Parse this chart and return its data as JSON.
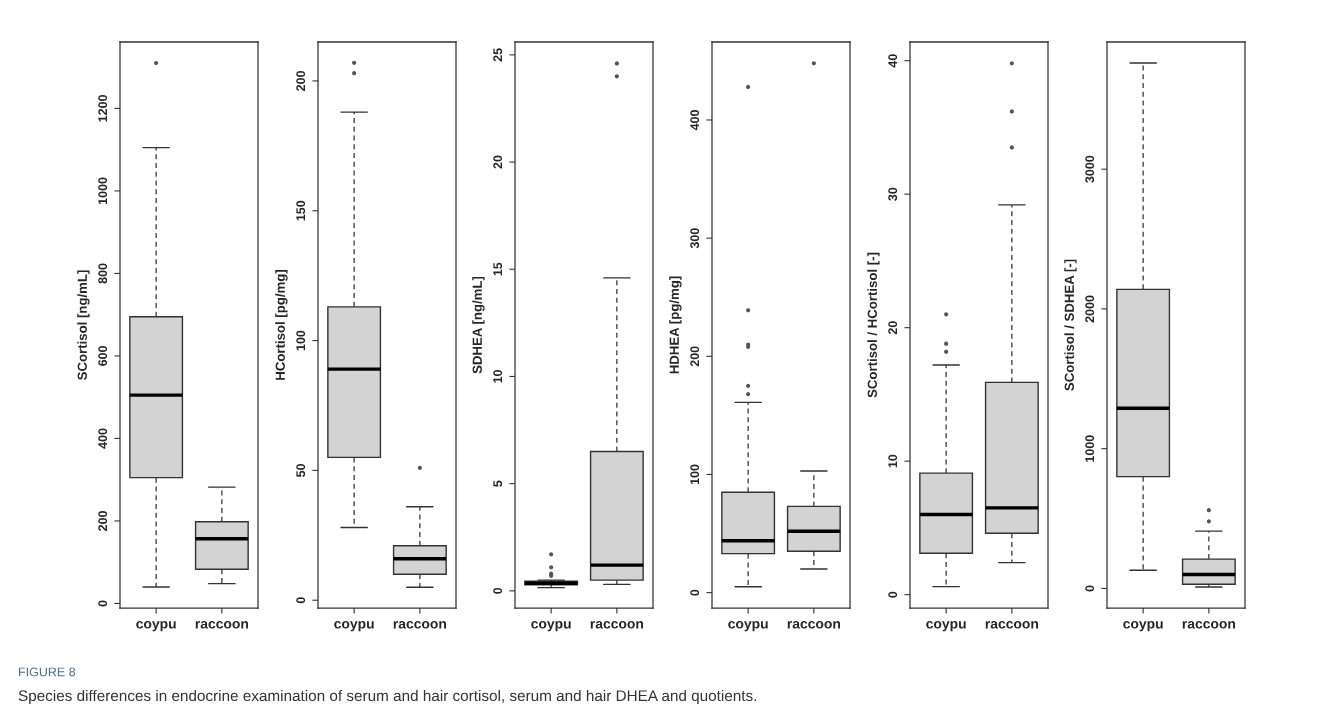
{
  "chart_data": [
    {
      "type": "box",
      "ylabel": "SCortisol [ng/mL]",
      "categories": [
        "coypu",
        "raccoon"
      ],
      "color": "#d3d3d3",
      "ylim": [
        -11,
        1361
      ],
      "yticks": [
        0,
        200,
        400,
        600,
        800,
        1000,
        1200
      ],
      "boxes": [
        {
          "low": 40,
          "q1": 305,
          "median": 505,
          "q3": 695,
          "high": 1105,
          "outliers": [
            1310
          ]
        },
        {
          "low": 48,
          "q1": 83,
          "median": 157,
          "q3": 198,
          "high": 282
        }
      ],
      "annotations": [
        "FIGURE 8",
        "Species differences in endocrine examination of serum and hair cortisol, serum and hair DHEA and quotients."
      ]
    },
    {
      "type": "box",
      "ylabel": "HCortisol [pg/mg]",
      "categories": [
        "coypu",
        "raccoon"
      ],
      "color": "#d3d3d3",
      "ylim": [
        -3,
        215
      ],
      "yticks": [
        0,
        50,
        100,
        150,
        200
      ],
      "boxes": [
        {
          "low": 28,
          "q1": 55,
          "median": 89,
          "q3": 113,
          "high": 188,
          "outliers": [
            203,
            207
          ]
        },
        {
          "low": 5,
          "q1": 10,
          "median": 16,
          "q3": 21,
          "high": 36,
          "outliers": [
            51
          ]
        }
      ]
    },
    {
      "type": "box",
      "ylabel": "SDHEA [ng/mL]",
      "categories": [
        "coypu",
        "raccoon"
      ],
      "color": "#d3d3d3",
      "ylim": [
        -0.8,
        25.6
      ],
      "yticks": [
        0,
        5,
        10,
        15,
        20,
        25
      ],
      "boxes": [
        {
          "low": 0.15,
          "q1": 0.28,
          "median": 0.35,
          "q3": 0.45,
          "high": 0.5,
          "outliers": [
            0.7,
            0.8,
            1.1,
            1.7
          ]
        },
        {
          "low": 0.3,
          "q1": 0.5,
          "median": 1.2,
          "q3": 6.5,
          "high": 14.6,
          "outliers": [
            24.0,
            24.6
          ]
        }
      ]
    },
    {
      "type": "box",
      "ylabel": "HDHEA [pg/mg]",
      "categories": [
        "coypu",
        "raccoon"
      ],
      "color": "#d3d3d3",
      "ylim": [
        -13,
        466
      ],
      "yticks": [
        0,
        100,
        200,
        300,
        400
      ],
      "boxes": [
        {
          "low": 5,
          "q1": 33,
          "median": 44,
          "q3": 85,
          "high": 161,
          "outliers": [
            168,
            175,
            208,
            210,
            239,
            428
          ]
        },
        {
          "low": 20,
          "q1": 35,
          "median": 52,
          "q3": 73,
          "high": 103,
          "outliers": [
            448
          ]
        }
      ]
    },
    {
      "type": "box",
      "ylabel": "SCortisol / HCortisol [-]",
      "categories": [
        "coypu",
        "raccoon"
      ],
      "color": "#d3d3d3",
      "ylim": [
        -1,
        41.4
      ],
      "yticks": [
        0,
        10,
        20,
        30,
        40
      ],
      "boxes": [
        {
          "low": 0.6,
          "q1": 3.1,
          "median": 6.0,
          "q3": 9.1,
          "high": 17.2,
          "outliers": [
            18.2,
            18.8,
            21.0
          ]
        },
        {
          "low": 2.4,
          "q1": 4.6,
          "median": 6.5,
          "q3": 15.9,
          "high": 29.2,
          "outliers": [
            33.5,
            36.2,
            39.8
          ]
        }
      ]
    },
    {
      "type": "box",
      "ylabel": "SCortisol / SDHEA [-]",
      "categories": [
        "coypu",
        "raccoon"
      ],
      "color": "#d3d3d3",
      "ylim": [
        -140,
        3910
      ],
      "yticks": [
        0,
        1000,
        2000,
        3000
      ],
      "boxes": [
        {
          "low": 130,
          "q1": 800,
          "median": 1290,
          "q3": 2140,
          "high": 3760
        },
        {
          "low": 10,
          "q1": 30,
          "median": 100,
          "q3": 210,
          "high": 410,
          "outliers": [
            480,
            560
          ]
        }
      ]
    }
  ]
}
